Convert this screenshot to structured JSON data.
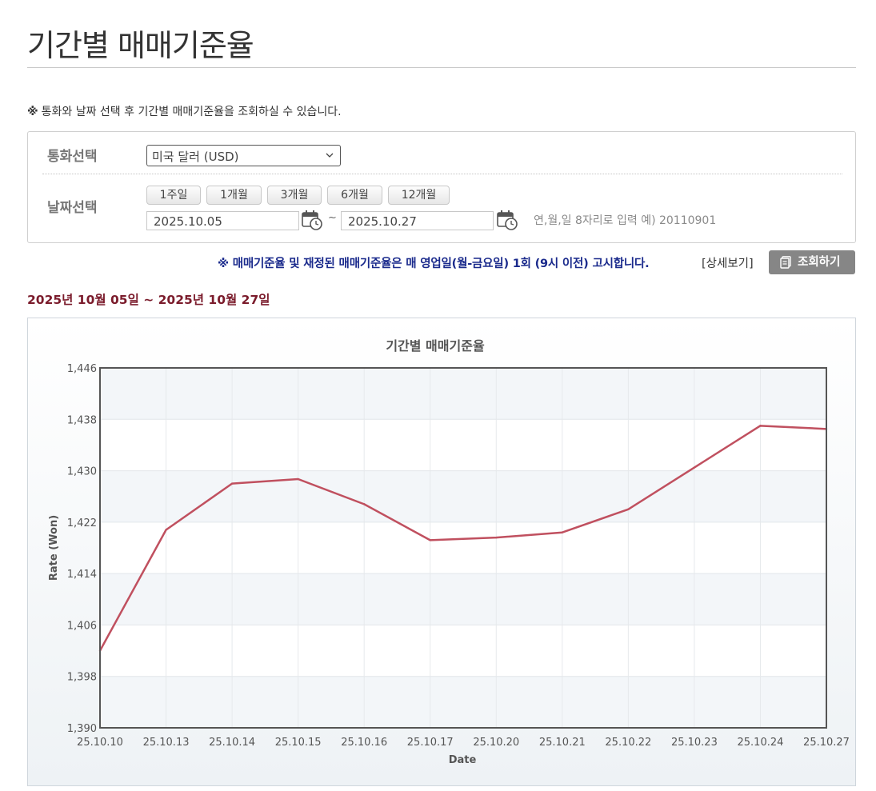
{
  "page": {
    "title": "기간별 매매기준율",
    "notice_mark": "※",
    "notice_text": "통화와 날짜 선택 후 기간별 매매기준율을 조회하실 수 있습니다."
  },
  "search": {
    "currency_label": "통화선택",
    "currency_value": "미국 달러 (USD)",
    "date_label": "날짜선택",
    "period_buttons": [
      "1주일",
      "1개월",
      "3개월",
      "6개월",
      "12개월"
    ],
    "start_date": "2025.10.05",
    "end_date": "2025.10.27",
    "tilde": "~",
    "date_hint": "연,월,일 8자리로 입력 예) 20110901"
  },
  "actions": {
    "notice": "※ 매매기준율 및 재정된 매매기준율은 매 영업일(월-금요일) 1회 (9시 이전) 고시합니다.",
    "detail_link": "[상세보기]",
    "lookup_button": "조회하기"
  },
  "range_text": "2025년 10월 05일 ~ 2025년 10월 27일",
  "colors": {
    "line": "#c0505f",
    "range_text": "#7b1c2c",
    "notice": "#1a2a8c"
  },
  "chart_data": {
    "type": "line",
    "title": "기간별 매매기준율",
    "xlabel": "Date",
    "ylabel": "Rate (Won)",
    "categories": [
      "25.10.10",
      "25.10.13",
      "25.10.14",
      "25.10.15",
      "25.10.16",
      "25.10.17",
      "25.10.20",
      "25.10.21",
      "25.10.22",
      "25.10.23",
      "25.10.24",
      "25.10.27"
    ],
    "series": [
      {
        "values": [
          1402.0,
          1420.8,
          1428.0,
          1428.7,
          1424.8,
          1419.2,
          1419.6,
          1420.4,
          1424.0,
          1430.5,
          1437.0,
          1436.5
        ]
      }
    ],
    "ylim": [
      1390,
      1446
    ],
    "yticks": [
      "1,390",
      "1,398",
      "1,406",
      "1,414",
      "1,422",
      "1,430",
      "1,438",
      "1,446"
    ],
    "grid": true
  }
}
